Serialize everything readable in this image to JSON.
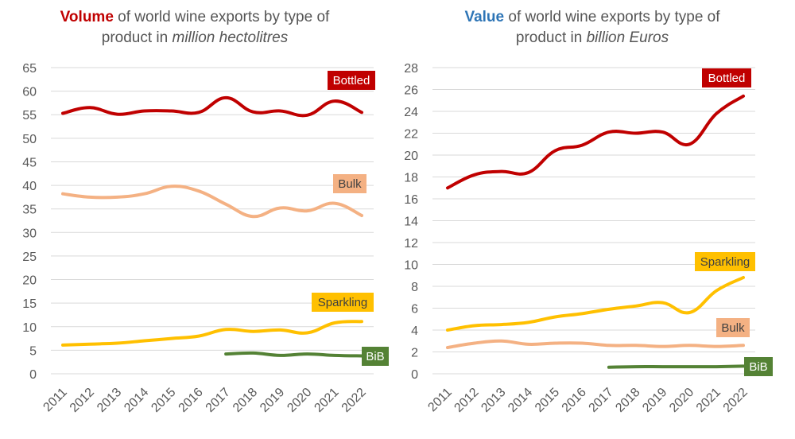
{
  "colors": {
    "bottled": "#c00000",
    "bulk": "#f4b183",
    "sparkling": "#ffc000",
    "bib": "#548235",
    "volume_word": "#c00000",
    "value_word": "#2e75b6",
    "grid": "#d9d9d9",
    "text": "#595959"
  },
  "chart_data": [
    {
      "type": "line",
      "title_highlight": "Volume",
      "title_rest": " of world wine exports by type of",
      "title_line2_prefix": "product in ",
      "title_line2_italic": "million hectolitres",
      "categories": [
        "2011",
        "2012",
        "2013",
        "2014",
        "2015",
        "2016",
        "2017",
        "2018",
        "2019",
        "2020",
        "2021",
        "2022"
      ],
      "ylim": [
        0,
        65
      ],
      "yticks": [
        "0",
        "5",
        "10",
        "15",
        "20",
        "25",
        "30",
        "35",
        "40",
        "45",
        "50",
        "55",
        "60",
        "65"
      ],
      "series": [
        {
          "key": "bottled",
          "name": "Bottled",
          "values": [
            55.3,
            56.5,
            55.1,
            55.8,
            55.8,
            55.5,
            58.6,
            55.6,
            55.8,
            54.9,
            57.9,
            55.5
          ]
        },
        {
          "key": "bulk",
          "name": "Bulk",
          "values": [
            38.2,
            37.5,
            37.5,
            38.2,
            39.8,
            38.8,
            36.0,
            33.4,
            35.2,
            34.6,
            36.2,
            33.6
          ]
        },
        {
          "key": "sparkling",
          "name": "Sparkling",
          "values": [
            6.1,
            6.3,
            6.5,
            7.0,
            7.5,
            8.0,
            9.4,
            9.0,
            9.3,
            8.7,
            10.8,
            11.1
          ]
        },
        {
          "key": "bib",
          "name": "BiB",
          "values": [
            null,
            null,
            null,
            null,
            null,
            null,
            4.2,
            4.4,
            3.9,
            4.2,
            3.9,
            3.8
          ]
        }
      ]
    },
    {
      "type": "line",
      "title_highlight": "Value",
      "title_rest": " of world wine exports by type of",
      "title_line2_prefix": "product in ",
      "title_line2_italic": "billion Euros",
      "categories": [
        "2011",
        "2012",
        "2013",
        "2014",
        "2015",
        "2016",
        "2017",
        "2018",
        "2019",
        "2020",
        "2021",
        "2022"
      ],
      "ylim": [
        0,
        28
      ],
      "yticks": [
        "0",
        "2",
        "4",
        "6",
        "8",
        "10",
        "12",
        "14",
        "16",
        "18",
        "20",
        "22",
        "24",
        "26",
        "28"
      ],
      "series": [
        {
          "key": "bottled",
          "name": "Bottled",
          "values": [
            17.0,
            18.2,
            18.5,
            18.4,
            20.4,
            20.9,
            22.1,
            22.0,
            22.1,
            21.0,
            23.8,
            25.4
          ]
        },
        {
          "key": "sparkling",
          "name": "Sparkling",
          "values": [
            4.0,
            4.4,
            4.5,
            4.7,
            5.2,
            5.5,
            5.9,
            6.2,
            6.5,
            5.6,
            7.6,
            8.8
          ]
        },
        {
          "key": "bulk",
          "name": "Bulk",
          "values": [
            2.4,
            2.8,
            3.0,
            2.7,
            2.8,
            2.8,
            2.6,
            2.6,
            2.5,
            2.6,
            2.5,
            2.6
          ]
        },
        {
          "key": "bib",
          "name": "BiB",
          "values": [
            null,
            null,
            null,
            null,
            null,
            null,
            0.6,
            0.65,
            0.65,
            0.65,
            0.65,
            0.7
          ]
        }
      ]
    }
  ]
}
